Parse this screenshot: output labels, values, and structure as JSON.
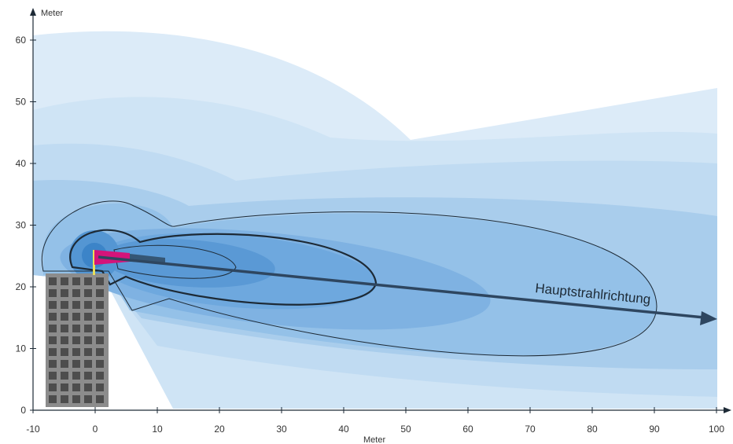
{
  "diagram": {
    "y_axis": {
      "title": "Meter",
      "ticks": [
        "0",
        "10",
        "20",
        "30",
        "40",
        "50",
        "60"
      ]
    },
    "x_axis": {
      "title": "Meter",
      "ticks": [
        "-10",
        "0",
        "10",
        "20",
        "30",
        "40",
        "50",
        "60",
        "70",
        "80",
        "90",
        "100"
      ]
    },
    "beam_label": "Hauptstrahlrichtung",
    "colors": {
      "zone_lightest": "#dcebf8",
      "zone_light": "#c6def3",
      "zone_mid": "#a9cdec",
      "zone_dark": "#86b8e3",
      "zone_darker": "#64a2d8",
      "zone_core": "#4a8fcd",
      "antenna": "#d4147a",
      "building": "#8c8c8c",
      "outline": "#1d2a36"
    }
  }
}
